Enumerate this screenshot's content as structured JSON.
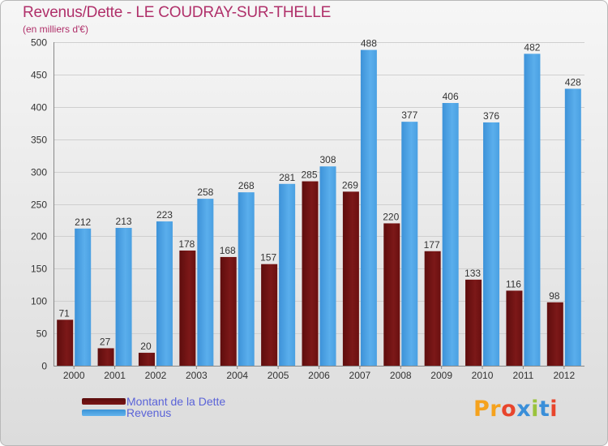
{
  "title": "Revenus/Dette - LE COUDRAY-SUR-THELLE",
  "subtitle": "(en milliers d'€)",
  "logo": {
    "text": "Proxiti",
    "letters": [
      "P",
      "r",
      "o",
      "x",
      "i",
      "t",
      "i"
    ],
    "colors": [
      "#f5a21d",
      "#f5a21d",
      "#e8452c",
      "#3a8fd9",
      "#9ac33c",
      "#3a8fd9",
      "#e8452c"
    ]
  },
  "colors": {
    "dette": "#7a1515",
    "revenus": "#4aa3e6",
    "text": "#b0306a",
    "legend_text": "#5a63d8"
  },
  "chart_data": {
    "type": "bar",
    "title": "Revenus/Dette - LE COUDRAY-SUR-THELLE",
    "ylabel": "(en milliers d'€)",
    "xlabel": "",
    "ylim": [
      0,
      500
    ],
    "yticks": [
      0,
      50,
      100,
      150,
      200,
      250,
      300,
      350,
      400,
      450,
      500
    ],
    "grid": true,
    "legend_position": "bottom-left",
    "categories": [
      "2000",
      "2001",
      "2002",
      "2003",
      "2004",
      "2005",
      "2006",
      "2007",
      "2008",
      "2009",
      "2010",
      "2011",
      "2012"
    ],
    "series": [
      {
        "name": "Montant de la Dette",
        "values": [
          71,
          27,
          20,
          178,
          168,
          157,
          285,
          269,
          220,
          177,
          133,
          116,
          98
        ]
      },
      {
        "name": "Revenus",
        "values": [
          212,
          213,
          223,
          258,
          268,
          281,
          308,
          488,
          377,
          406,
          376,
          482,
          428
        ]
      }
    ]
  }
}
